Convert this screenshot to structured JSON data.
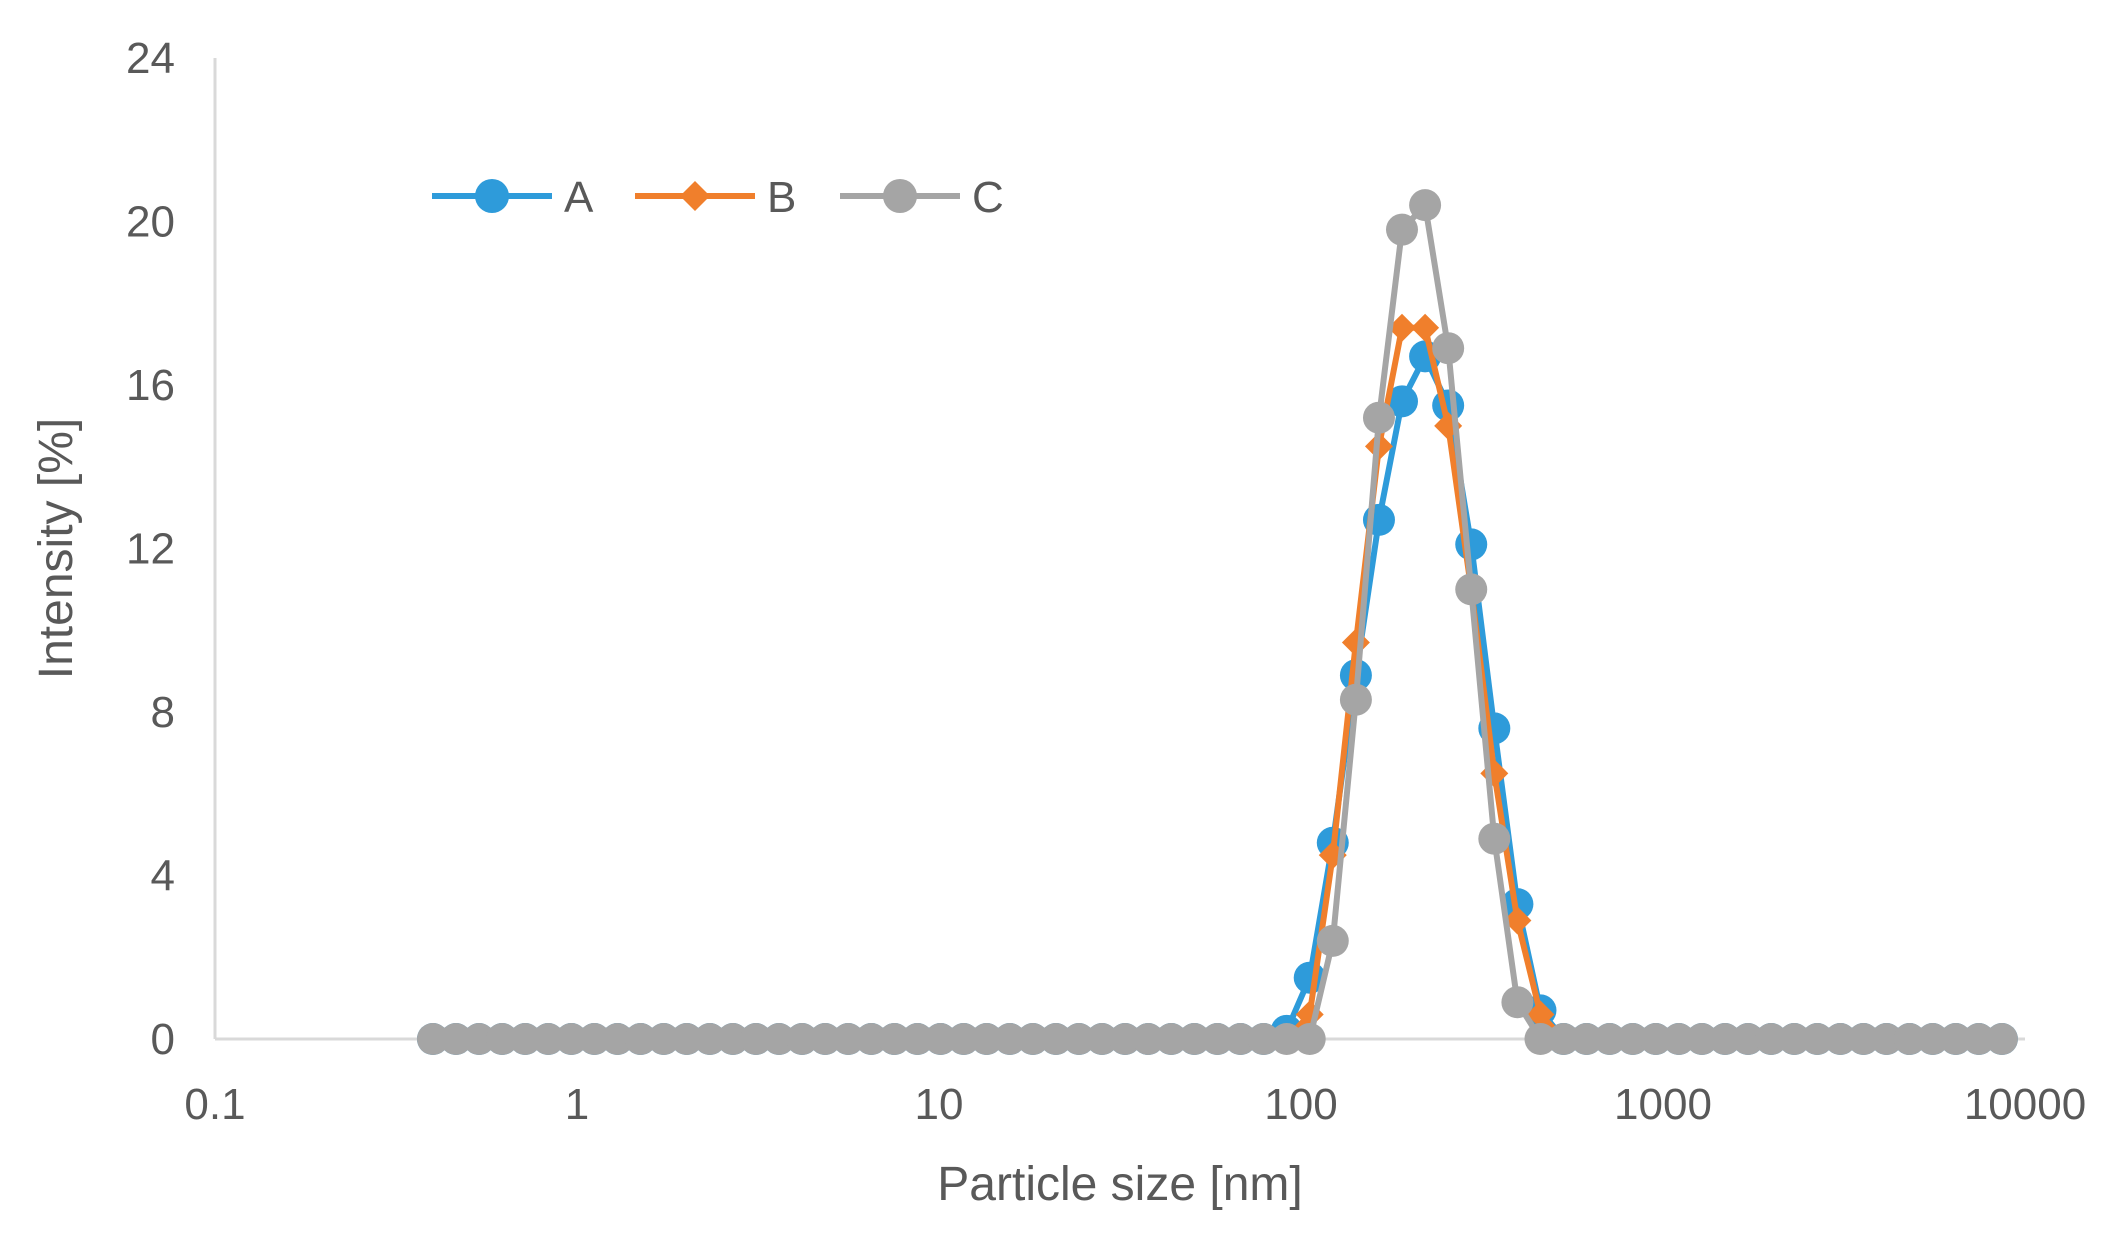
{
  "chart_data": {
    "type": "scatter",
    "xlabel": "Particle size [nm]",
    "ylabel": "Intensity [%]",
    "x_scale": "log",
    "xlim": [
      0.1,
      10000
    ],
    "ylim": [
      0,
      24
    ],
    "x_ticks": [
      "0.1",
      "1",
      "10",
      "100",
      "1000",
      "10000"
    ],
    "y_ticks": [
      "0",
      "4",
      "8",
      "12",
      "16",
      "20",
      "24"
    ],
    "grid": false,
    "legend_position": "top-left",
    "x": [
      0.4,
      0.4632,
      0.5365,
      0.6213,
      0.7195,
      0.8332,
      0.9649,
      1.117,
      1.294,
      1.499,
      1.736,
      2.01,
      2.328,
      2.696,
      3.122,
      3.615,
      4.187,
      4.849,
      5.615,
      6.503,
      7.531,
      8.721,
      10.1,
      11.7,
      13.54,
      15.69,
      18.17,
      21.04,
      24.36,
      28.21,
      32.67,
      37.84,
      43.82,
      50.75,
      58.77,
      68.06,
      78.82,
      91.28,
      105.7,
      122.4,
      141.8,
      164.2,
      190.1,
      220.2,
      255.0,
      295.3,
      342.0,
      396.1,
      458.7,
      531.2,
      615.1,
      712.4,
      825.0,
      955.4,
      1106,
      1281,
      1484,
      1718,
      1990,
      2305,
      2669,
      3091,
      3580,
      4145,
      4801,
      5560,
      6439,
      7456,
      8635
    ],
    "series": [
      {
        "name": "A",
        "color": "#2E9BDA",
        "marker": "circle",
        "values": [
          0,
          0,
          0,
          0,
          0,
          0,
          0,
          0,
          0,
          0,
          0,
          0,
          0,
          0,
          0,
          0,
          0,
          0,
          0,
          0,
          0,
          0,
          0,
          0,
          0,
          0,
          0,
          0,
          0,
          0,
          0,
          0,
          0,
          0,
          0,
          0,
          0,
          0.2,
          1.5,
          4.8,
          8.9,
          12.7,
          15.6,
          16.7,
          15.5,
          12.1,
          7.6,
          3.3,
          0.7,
          0,
          0,
          0,
          0,
          0,
          0,
          0,
          0,
          0,
          0,
          0,
          0,
          0,
          0,
          0,
          0,
          0,
          0,
          0,
          0
        ]
      },
      {
        "name": "B",
        "color": "#F07F2C",
        "marker": "diamond",
        "values": [
          0,
          0,
          0,
          0,
          0,
          0,
          0,
          0,
          0,
          0,
          0,
          0,
          0,
          0,
          0,
          0,
          0,
          0,
          0,
          0,
          0,
          0,
          0,
          0,
          0,
          0,
          0,
          0,
          0,
          0,
          0,
          0,
          0,
          0,
          0,
          0,
          0,
          0,
          0.6,
          4.5,
          9.7,
          14.5,
          17.4,
          17.4,
          15.0,
          11.0,
          6.5,
          2.9,
          0.6,
          0,
          0,
          0,
          0,
          0,
          0,
          0,
          0,
          0,
          0,
          0,
          0,
          0,
          0,
          0,
          0,
          0,
          0,
          0,
          0
        ]
      },
      {
        "name": "C",
        "color": "#A5A5A5",
        "marker": "circle",
        "values": [
          0,
          0,
          0,
          0,
          0,
          0,
          0,
          0,
          0,
          0,
          0,
          0,
          0,
          0,
          0,
          0,
          0,
          0,
          0,
          0,
          0,
          0,
          0,
          0,
          0,
          0,
          0,
          0,
          0,
          0,
          0,
          0,
          0,
          0,
          0,
          0,
          0,
          0,
          0,
          2.4,
          8.3,
          15.2,
          19.8,
          20.4,
          16.9,
          11.0,
          4.9,
          0.9,
          0,
          0,
          0,
          0,
          0,
          0,
          0,
          0,
          0,
          0,
          0,
          0,
          0,
          0,
          0,
          0,
          0,
          0,
          0,
          0,
          0
        ]
      }
    ]
  }
}
